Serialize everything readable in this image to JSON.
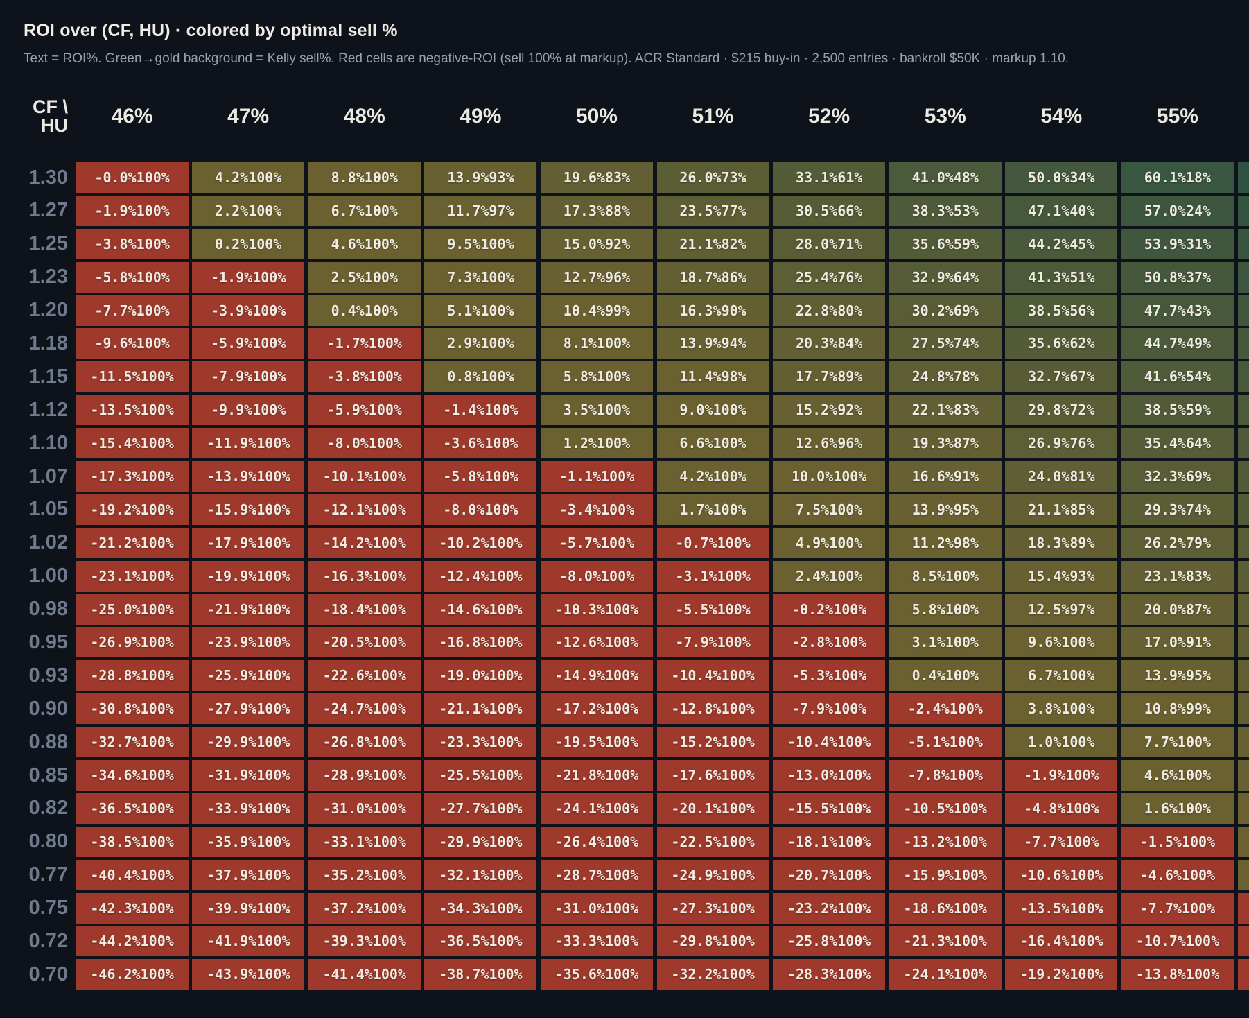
{
  "title": "ROI over (CF, HU) · colored by optimal sell %",
  "subtitle": "Text = ROI%. Green→gold background = Kelly sell%. Red cells are negative-ROI (sell 100% at markup). ACR Standard · $215 buy-in · 2,500 entries · bankroll $50K · markup 1.10.",
  "corner": {
    "line1": "CF \\",
    "line2": "HU"
  },
  "colors": {
    "background": "#0D121B",
    "header_text": "#ECE9E1",
    "row_label_text": "#6F7A8B",
    "subtitle_text": "#99A1AB",
    "cell_text": "#F0ECE3",
    "cell_negative": "#9E392C",
    "sell_scale_low": "#2E5343",
    "sell_scale_high": "#6B6130"
  },
  "chart_data": {
    "type": "heatmap",
    "title": "ROI over (CF, HU) · colored by optimal sell %",
    "x_label": "HU",
    "y_label": "CF",
    "cell_format": "ROI% followed by Kelly sell%",
    "columns": [
      "46%",
      "47%",
      "48%",
      "49%",
      "50%",
      "51%",
      "52%",
      "53%",
      "54%",
      "55%"
    ],
    "rows": [
      {
        "cf": "1.30",
        "cells": [
          [
            "-0.0",
            100
          ],
          [
            "4.2",
            100
          ],
          [
            "8.8",
            100
          ],
          [
            "13.9",
            93
          ],
          [
            "19.6",
            83
          ],
          [
            "26.0",
            73
          ],
          [
            "33.1",
            61
          ],
          [
            "41.0",
            48
          ],
          [
            "50.0",
            34
          ],
          [
            "60.1",
            18
          ]
        ]
      },
      {
        "cf": "1.27",
        "cells": [
          [
            "-1.9",
            100
          ],
          [
            "2.2",
            100
          ],
          [
            "6.7",
            100
          ],
          [
            "11.7",
            97
          ],
          [
            "17.3",
            88
          ],
          [
            "23.5",
            77
          ],
          [
            "30.5",
            66
          ],
          [
            "38.3",
            53
          ],
          [
            "47.1",
            40
          ],
          [
            "57.0",
            24
          ]
        ]
      },
      {
        "cf": "1.25",
        "cells": [
          [
            "-3.8",
            100
          ],
          [
            "0.2",
            100
          ],
          [
            "4.6",
            100
          ],
          [
            "9.5",
            100
          ],
          [
            "15.0",
            92
          ],
          [
            "21.1",
            82
          ],
          [
            "28.0",
            71
          ],
          [
            "35.6",
            59
          ],
          [
            "44.2",
            45
          ],
          [
            "53.9",
            31
          ]
        ]
      },
      {
        "cf": "1.23",
        "cells": [
          [
            "-5.8",
            100
          ],
          [
            "-1.9",
            100
          ],
          [
            "2.5",
            100
          ],
          [
            "7.3",
            100
          ],
          [
            "12.7",
            96
          ],
          [
            "18.7",
            86
          ],
          [
            "25.4",
            76
          ],
          [
            "32.9",
            64
          ],
          [
            "41.3",
            51
          ],
          [
            "50.8",
            37
          ]
        ]
      },
      {
        "cf": "1.20",
        "cells": [
          [
            "-7.7",
            100
          ],
          [
            "-3.9",
            100
          ],
          [
            "0.4",
            100
          ],
          [
            "5.1",
            100
          ],
          [
            "10.4",
            99
          ],
          [
            "16.3",
            90
          ],
          [
            "22.8",
            80
          ],
          [
            "30.2",
            69
          ],
          [
            "38.5",
            56
          ],
          [
            "47.7",
            43
          ]
        ]
      },
      {
        "cf": "1.18",
        "cells": [
          [
            "-9.6",
            100
          ],
          [
            "-5.9",
            100
          ],
          [
            "-1.7",
            100
          ],
          [
            "2.9",
            100
          ],
          [
            "8.1",
            100
          ],
          [
            "13.9",
            94
          ],
          [
            "20.3",
            84
          ],
          [
            "27.5",
            74
          ],
          [
            "35.6",
            62
          ],
          [
            "44.7",
            49
          ]
        ]
      },
      {
        "cf": "1.15",
        "cells": [
          [
            "-11.5",
            100
          ],
          [
            "-7.9",
            100
          ],
          [
            "-3.8",
            100
          ],
          [
            "0.8",
            100
          ],
          [
            "5.8",
            100
          ],
          [
            "11.4",
            98
          ],
          [
            "17.7",
            89
          ],
          [
            "24.8",
            78
          ],
          [
            "32.7",
            67
          ],
          [
            "41.6",
            54
          ]
        ]
      },
      {
        "cf": "1.12",
        "cells": [
          [
            "-13.5",
            100
          ],
          [
            "-9.9",
            100
          ],
          [
            "-5.9",
            100
          ],
          [
            "-1.4",
            100
          ],
          [
            "3.5",
            100
          ],
          [
            "9.0",
            100
          ],
          [
            "15.2",
            92
          ],
          [
            "22.1",
            83
          ],
          [
            "29.8",
            72
          ],
          [
            "38.5",
            59
          ]
        ]
      },
      {
        "cf": "1.10",
        "cells": [
          [
            "-15.4",
            100
          ],
          [
            "-11.9",
            100
          ],
          [
            "-8.0",
            100
          ],
          [
            "-3.6",
            100
          ],
          [
            "1.2",
            100
          ],
          [
            "6.6",
            100
          ],
          [
            "12.6",
            96
          ],
          [
            "19.3",
            87
          ],
          [
            "26.9",
            76
          ],
          [
            "35.4",
            64
          ]
        ]
      },
      {
        "cf": "1.07",
        "cells": [
          [
            "-17.3",
            100
          ],
          [
            "-13.9",
            100
          ],
          [
            "-10.1",
            100
          ],
          [
            "-5.8",
            100
          ],
          [
            "-1.1",
            100
          ],
          [
            "4.2",
            100
          ],
          [
            "10.0",
            100
          ],
          [
            "16.6",
            91
          ],
          [
            "24.0",
            81
          ],
          [
            "32.3",
            69
          ]
        ]
      },
      {
        "cf": "1.05",
        "cells": [
          [
            "-19.2",
            100
          ],
          [
            "-15.9",
            100
          ],
          [
            "-12.1",
            100
          ],
          [
            "-8.0",
            100
          ],
          [
            "-3.4",
            100
          ],
          [
            "1.7",
            100
          ],
          [
            "7.5",
            100
          ],
          [
            "13.9",
            95
          ],
          [
            "21.1",
            85
          ],
          [
            "29.3",
            74
          ]
        ]
      },
      {
        "cf": "1.02",
        "cells": [
          [
            "-21.2",
            100
          ],
          [
            "-17.9",
            100
          ],
          [
            "-14.2",
            100
          ],
          [
            "-10.2",
            100
          ],
          [
            "-5.7",
            100
          ],
          [
            "-0.7",
            100
          ],
          [
            "4.9",
            100
          ],
          [
            "11.2",
            98
          ],
          [
            "18.3",
            89
          ],
          [
            "26.2",
            79
          ]
        ]
      },
      {
        "cf": "1.00",
        "cells": [
          [
            "-23.1",
            100
          ],
          [
            "-19.9",
            100
          ],
          [
            "-16.3",
            100
          ],
          [
            "-12.4",
            100
          ],
          [
            "-8.0",
            100
          ],
          [
            "-3.1",
            100
          ],
          [
            "2.4",
            100
          ],
          [
            "8.5",
            100
          ],
          [
            "15.4",
            93
          ],
          [
            "23.1",
            83
          ]
        ]
      },
      {
        "cf": "0.98",
        "cells": [
          [
            "-25.0",
            100
          ],
          [
            "-21.9",
            100
          ],
          [
            "-18.4",
            100
          ],
          [
            "-14.6",
            100
          ],
          [
            "-10.3",
            100
          ],
          [
            "-5.5",
            100
          ],
          [
            "-0.2",
            100
          ],
          [
            "5.8",
            100
          ],
          [
            "12.5",
            97
          ],
          [
            "20.0",
            87
          ]
        ]
      },
      {
        "cf": "0.95",
        "cells": [
          [
            "-26.9",
            100
          ],
          [
            "-23.9",
            100
          ],
          [
            "-20.5",
            100
          ],
          [
            "-16.8",
            100
          ],
          [
            "-12.6",
            100
          ],
          [
            "-7.9",
            100
          ],
          [
            "-2.8",
            100
          ],
          [
            "3.1",
            100
          ],
          [
            "9.6",
            100
          ],
          [
            "17.0",
            91
          ]
        ]
      },
      {
        "cf": "0.93",
        "cells": [
          [
            "-28.8",
            100
          ],
          [
            "-25.9",
            100
          ],
          [
            "-22.6",
            100
          ],
          [
            "-19.0",
            100
          ],
          [
            "-14.9",
            100
          ],
          [
            "-10.4",
            100
          ],
          [
            "-5.3",
            100
          ],
          [
            "0.4",
            100
          ],
          [
            "6.7",
            100
          ],
          [
            "13.9",
            95
          ]
        ]
      },
      {
        "cf": "0.90",
        "cells": [
          [
            "-30.8",
            100
          ],
          [
            "-27.9",
            100
          ],
          [
            "-24.7",
            100
          ],
          [
            "-21.1",
            100
          ],
          [
            "-17.2",
            100
          ],
          [
            "-12.8",
            100
          ],
          [
            "-7.9",
            100
          ],
          [
            "-2.4",
            100
          ],
          [
            "3.8",
            100
          ],
          [
            "10.8",
            99
          ]
        ]
      },
      {
        "cf": "0.88",
        "cells": [
          [
            "-32.7",
            100
          ],
          [
            "-29.9",
            100
          ],
          [
            "-26.8",
            100
          ],
          [
            "-23.3",
            100
          ],
          [
            "-19.5",
            100
          ],
          [
            "-15.2",
            100
          ],
          [
            "-10.4",
            100
          ],
          [
            "-5.1",
            100
          ],
          [
            "1.0",
            100
          ],
          [
            "7.7",
            100
          ]
        ]
      },
      {
        "cf": "0.85",
        "cells": [
          [
            "-34.6",
            100
          ],
          [
            "-31.9",
            100
          ],
          [
            "-28.9",
            100
          ],
          [
            "-25.5",
            100
          ],
          [
            "-21.8",
            100
          ],
          [
            "-17.6",
            100
          ],
          [
            "-13.0",
            100
          ],
          [
            "-7.8",
            100
          ],
          [
            "-1.9",
            100
          ],
          [
            "4.6",
            100
          ]
        ]
      },
      {
        "cf": "0.82",
        "cells": [
          [
            "-36.5",
            100
          ],
          [
            "-33.9",
            100
          ],
          [
            "-31.0",
            100
          ],
          [
            "-27.7",
            100
          ],
          [
            "-24.1",
            100
          ],
          [
            "-20.1",
            100
          ],
          [
            "-15.5",
            100
          ],
          [
            "-10.5",
            100
          ],
          [
            "-4.8",
            100
          ],
          [
            "1.6",
            100
          ]
        ]
      },
      {
        "cf": "0.80",
        "cells": [
          [
            "-38.5",
            100
          ],
          [
            "-35.9",
            100
          ],
          [
            "-33.1",
            100
          ],
          [
            "-29.9",
            100
          ],
          [
            "-26.4",
            100
          ],
          [
            "-22.5",
            100
          ],
          [
            "-18.1",
            100
          ],
          [
            "-13.2",
            100
          ],
          [
            "-7.7",
            100
          ],
          [
            "-1.5",
            100
          ]
        ]
      },
      {
        "cf": "0.77",
        "cells": [
          [
            "-40.4",
            100
          ],
          [
            "-37.9",
            100
          ],
          [
            "-35.2",
            100
          ],
          [
            "-32.1",
            100
          ],
          [
            "-28.7",
            100
          ],
          [
            "-24.9",
            100
          ],
          [
            "-20.7",
            100
          ],
          [
            "-15.9",
            100
          ],
          [
            "-10.6",
            100
          ],
          [
            "-4.6",
            100
          ]
        ]
      },
      {
        "cf": "0.75",
        "cells": [
          [
            "-42.3",
            100
          ],
          [
            "-39.9",
            100
          ],
          [
            "-37.2",
            100
          ],
          [
            "-34.3",
            100
          ],
          [
            "-31.0",
            100
          ],
          [
            "-27.3",
            100
          ],
          [
            "-23.2",
            100
          ],
          [
            "-18.6",
            100
          ],
          [
            "-13.5",
            100
          ],
          [
            "-7.7",
            100
          ]
        ]
      },
      {
        "cf": "0.72",
        "cells": [
          [
            "-44.2",
            100
          ],
          [
            "-41.9",
            100
          ],
          [
            "-39.3",
            100
          ],
          [
            "-36.5",
            100
          ],
          [
            "-33.3",
            100
          ],
          [
            "-29.8",
            100
          ],
          [
            "-25.8",
            100
          ],
          [
            "-21.3",
            100
          ],
          [
            "-16.4",
            100
          ],
          [
            "-10.7",
            100
          ]
        ]
      },
      {
        "cf": "0.70",
        "cells": [
          [
            "-46.2",
            100
          ],
          [
            "-43.9",
            100
          ],
          [
            "-41.4",
            100
          ],
          [
            "-38.7",
            100
          ],
          [
            "-35.6",
            100
          ],
          [
            "-32.2",
            100
          ],
          [
            "-28.3",
            100
          ],
          [
            "-24.1",
            100
          ],
          [
            "-19.2",
            100
          ],
          [
            "-13.8",
            100
          ]
        ]
      }
    ]
  },
  "truncated_last_column": {
    "note": "partial 11th column clipped at right screen edge, no text visible",
    "colors": [
      "#2F5343",
      "#335441",
      "#385540",
      "#3C563F",
      "#40573D",
      "#44583C",
      "#48593B",
      "#4B5A3A",
      "#4E5A39",
      "#515B38",
      "#545C37",
      "#575D36",
      "#5A5D35",
      "#5D5E34",
      "#5F5E34",
      "#625F33",
      "#645F32",
      "#676031",
      "#696031",
      "#6B6130",
      "#6B6130",
      "#6B6130",
      "#9E392C",
      "#9E392C",
      "#9E392C"
    ]
  }
}
